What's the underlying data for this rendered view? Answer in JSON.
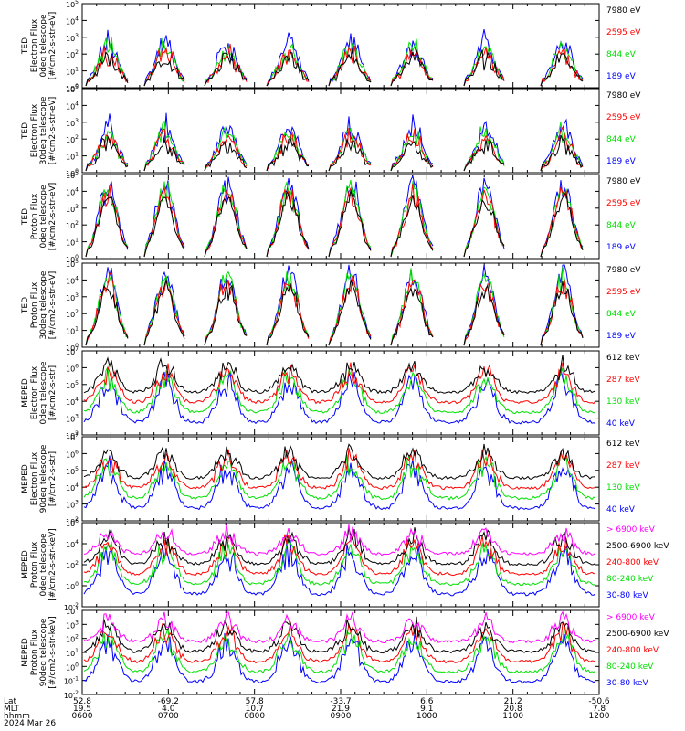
{
  "colors": {
    "black": "#000000",
    "red": "#ff0000",
    "green": "#00e000",
    "blue": "#0000ff",
    "magenta": "#ff00ff"
  },
  "chart_data": [
    {
      "type": "line",
      "title": "",
      "ylabel_lines": [
        "TED",
        "Electron Flux",
        "0deg telescope",
        "[#/cm2-s-str-eV]"
      ],
      "y_ticks": [
        "10^0",
        "10^1",
        "10^2",
        "10^3",
        "10^4",
        "10^5"
      ],
      "legend": [
        {
          "label": "7980 eV",
          "color": "black"
        },
        {
          "label": "2595 eV",
          "color": "red"
        },
        {
          "label": "844 eV",
          "color": "green"
        },
        {
          "label": "189 eV",
          "color": "blue"
        }
      ]
    },
    {
      "type": "line",
      "title": "",
      "ylabel_lines": [
        "TED",
        "Electron Flux",
        "30deg telescope",
        "[#/cm2-s-str-eV]"
      ],
      "y_ticks": [
        "10^0",
        "10^1",
        "10^2",
        "10^3",
        "10^4",
        "10^5"
      ],
      "legend": [
        {
          "label": "7980 eV",
          "color": "black"
        },
        {
          "label": "2595 eV",
          "color": "red"
        },
        {
          "label": "844 eV",
          "color": "green"
        },
        {
          "label": "189 eV",
          "color": "blue"
        }
      ]
    },
    {
      "type": "line",
      "title": "",
      "ylabel_lines": [
        "TED",
        "Proton Flux",
        "0deg telescope",
        "[#/cm2-s-str-eV]"
      ],
      "y_ticks": [
        "10^0",
        "10^1",
        "10^2",
        "10^3",
        "10^4",
        "10^5"
      ],
      "legend": [
        {
          "label": "7980 eV",
          "color": "black"
        },
        {
          "label": "2595 eV",
          "color": "red"
        },
        {
          "label": "844 eV",
          "color": "green"
        },
        {
          "label": "189 eV",
          "color": "blue"
        }
      ]
    },
    {
      "type": "line",
      "title": "",
      "ylabel_lines": [
        "TED",
        "Proton Flux",
        "30deg telescope",
        "[#/cm2-s-str-eV]"
      ],
      "y_ticks": [
        "10^0",
        "10^1",
        "10^2",
        "10^3",
        "10^4",
        "10^5"
      ],
      "legend": [
        {
          "label": "7980 eV",
          "color": "black"
        },
        {
          "label": "2595 eV",
          "color": "red"
        },
        {
          "label": "844 eV",
          "color": "green"
        },
        {
          "label": "189 eV",
          "color": "blue"
        }
      ]
    },
    {
      "type": "line",
      "title": "",
      "ylabel_lines": [
        "MEPED",
        "Electron Flux",
        "0deg telescope",
        "[#/cm2-s-str]"
      ],
      "y_ticks": [
        "10^2",
        "10^3",
        "10^4",
        "10^5",
        "10^6",
        "10^7"
      ],
      "legend": [
        {
          "label": "612 keV",
          "color": "black"
        },
        {
          "label": "287 keV",
          "color": "red"
        },
        {
          "label": "130 keV",
          "color": "green"
        },
        {
          "label": "40 keV",
          "color": "blue"
        }
      ]
    },
    {
      "type": "line",
      "title": "",
      "ylabel_lines": [
        "MEPED",
        "Electron Flux",
        "90deg telescope",
        "[#/cm2-s-str]"
      ],
      "y_ticks": [
        "10^2",
        "10^3",
        "10^4",
        "10^5",
        "10^6",
        "10^7"
      ],
      "legend": [
        {
          "label": "612 keV",
          "color": "black"
        },
        {
          "label": "287 keV",
          "color": "red"
        },
        {
          "label": "130 keV",
          "color": "green"
        },
        {
          "label": "40 keV",
          "color": "blue"
        }
      ]
    },
    {
      "type": "line",
      "title": "",
      "ylabel_lines": [
        "MEPED",
        "Proton Flux",
        "0deg telescope",
        "[#/cm2-s-str-keV]"
      ],
      "y_ticks": [
        "10^-2",
        "10^0",
        "10^2",
        "10^4",
        "10^6"
      ],
      "legend": [
        {
          "label": "> 6900 keV",
          "color": "magenta"
        },
        {
          "label": "2500-6900 keV",
          "color": "black"
        },
        {
          "label": "240-800 keV",
          "color": "red"
        },
        {
          "label": "80-240 keV",
          "color": "green"
        },
        {
          "label": "30-80 keV",
          "color": "blue"
        }
      ]
    },
    {
      "type": "line",
      "title": "",
      "ylabel_lines": [
        "MEPED",
        "Proton Flux",
        "90deg telescope",
        "[#/cm2-s-str-keV]"
      ],
      "y_ticks": [
        "10^-2",
        "10^-1",
        "10^0",
        "10^1",
        "10^2",
        "10^3",
        "10^4"
      ],
      "legend": [
        {
          "label": "> 6900 keV",
          "color": "magenta"
        },
        {
          "label": "2500-6900 keV",
          "color": "black"
        },
        {
          "label": "240-800 keV",
          "color": "red"
        },
        {
          "label": "80-240 keV",
          "color": "green"
        },
        {
          "label": "30-80 keV",
          "color": "blue"
        }
      ]
    }
  ],
  "x_axis": {
    "row_labels": [
      "Lat",
      "MLT",
      "hhmm",
      "2024 Mar 26"
    ],
    "ticks": [
      {
        "lat": "52.8",
        "mlt": "19.5",
        "hhmm": "0600"
      },
      {
        "lat": "-69.2",
        "mlt": "4.0",
        "hhmm": "0700"
      },
      {
        "lat": "57.8",
        "mlt": "10.7",
        "hhmm": "0800"
      },
      {
        "lat": "-33.7",
        "mlt": "21.9",
        "hhmm": "0900"
      },
      {
        "lat": "6.6",
        "mlt": "9.1",
        "hhmm": "1000"
      },
      {
        "lat": "21.2",
        "mlt": "20.8",
        "hhmm": "1100"
      },
      {
        "lat": "-50.6",
        "mlt": "7.8",
        "hhmm": "1200"
      }
    ]
  }
}
